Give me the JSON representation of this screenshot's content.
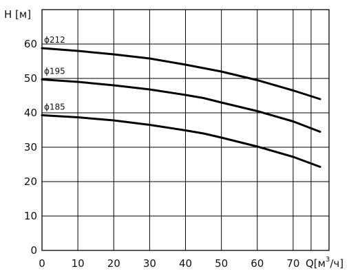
{
  "chart_data": {
    "type": "line",
    "title": "",
    "ylabel": "H [м]",
    "xlabel_prefix": "Q[м",
    "xlabel_sup": "3",
    "xlabel_suffix": "/ч]",
    "xlim": [
      0,
      80
    ],
    "ylim": [
      0,
      70
    ],
    "xticks": [
      0,
      10,
      20,
      30,
      40,
      50,
      60,
      70
    ],
    "yticks": [
      0,
      10,
      20,
      30,
      40,
      50,
      60
    ],
    "grid": true,
    "series": [
      {
        "name": "ϕ212",
        "x": [
          0,
          10,
          20,
          30,
          40,
          45,
          50,
          60,
          70,
          77.5
        ],
        "y": [
          58.8,
          58.0,
          57.0,
          55.8,
          54.0,
          53.0,
          52.0,
          49.5,
          46.5,
          44.0
        ]
      },
      {
        "name": "ϕ195",
        "x": [
          0,
          10,
          20,
          30,
          40,
          45,
          50,
          60,
          70,
          77.5
        ],
        "y": [
          49.7,
          49.0,
          48.0,
          46.8,
          45.2,
          44.3,
          43.0,
          40.5,
          37.5,
          34.5
        ]
      },
      {
        "name": "ϕ185",
        "x": [
          0,
          10,
          20,
          30,
          40,
          45,
          50,
          60,
          70,
          77.5
        ],
        "y": [
          39.3,
          38.7,
          37.8,
          36.5,
          34.9,
          34.0,
          32.8,
          30.2,
          27.2,
          24.3
        ]
      }
    ]
  }
}
